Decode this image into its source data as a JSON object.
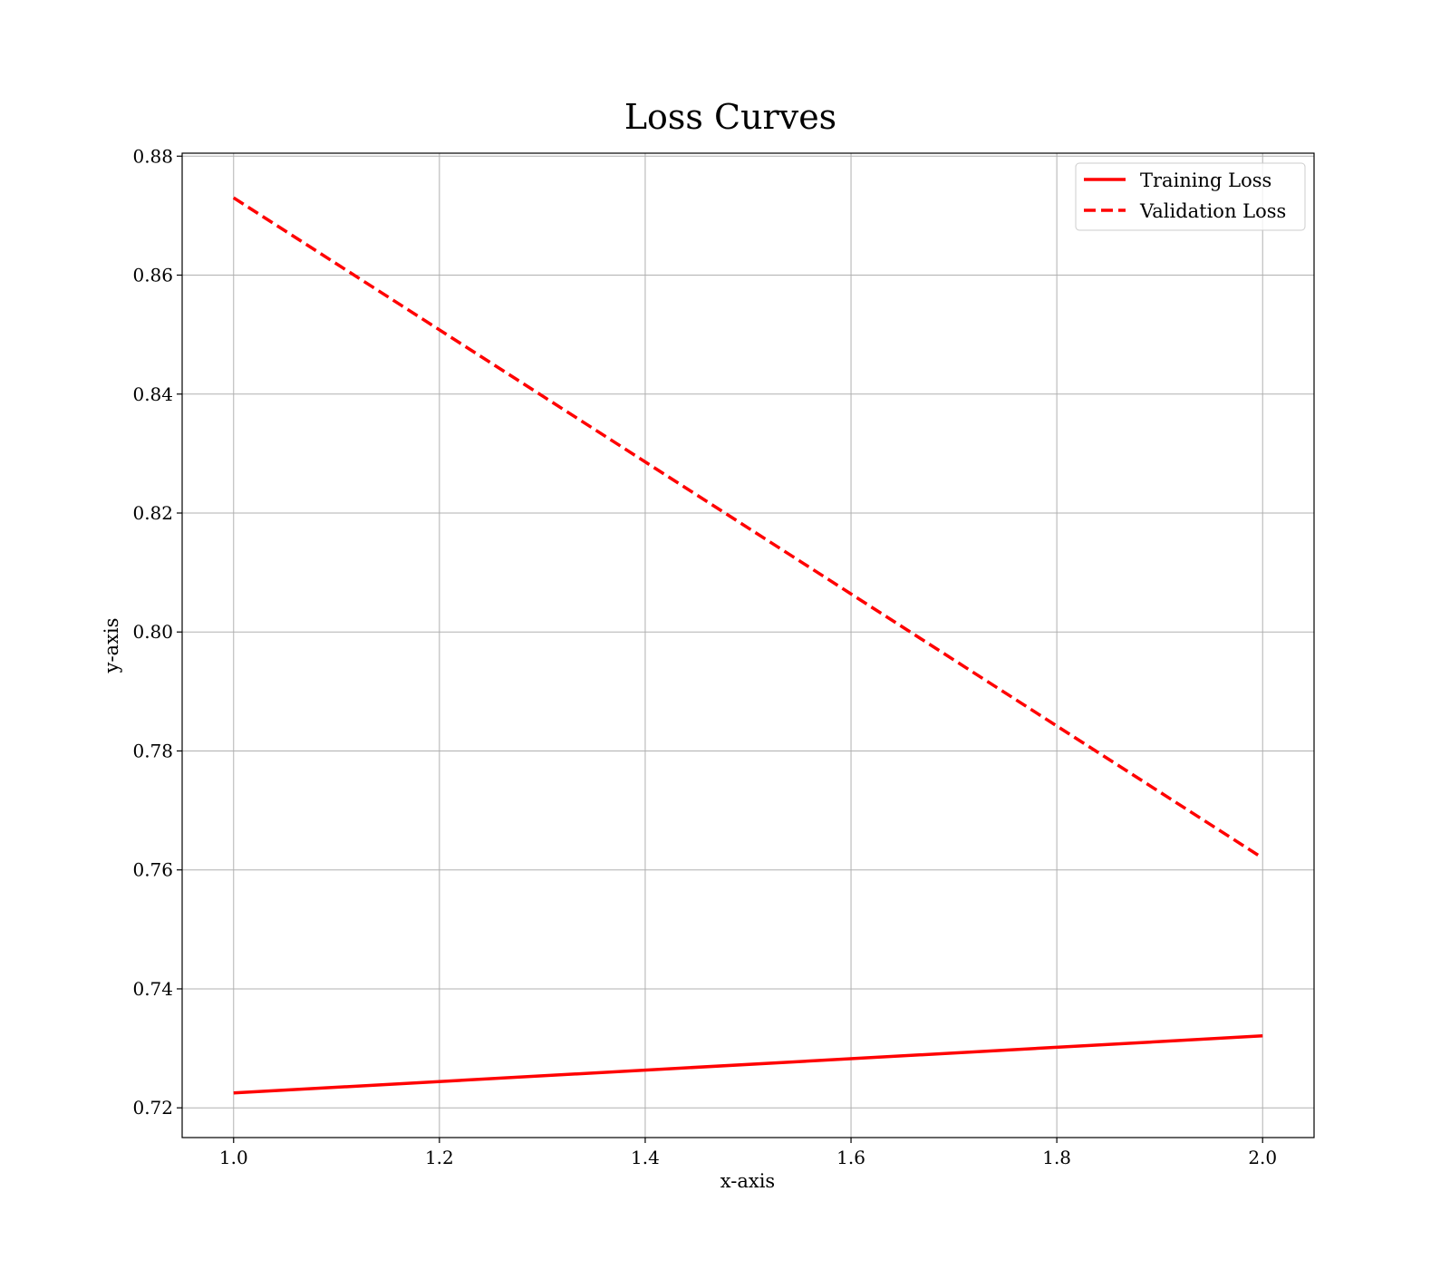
{
  "chart_data": {
    "type": "line",
    "title": "Loss Curves",
    "xlabel": "x-axis",
    "ylabel": "y-axis",
    "xlim": [
      0.95,
      2.05
    ],
    "ylim": [
      0.715,
      0.8805
    ],
    "xticks": [
      1.0,
      1.2,
      1.4,
      1.6,
      1.8,
      2.0
    ],
    "xtick_labels": [
      "1.0",
      "1.2",
      "1.4",
      "1.6",
      "1.8",
      "2.0"
    ],
    "yticks": [
      0.72,
      0.74,
      0.76,
      0.78,
      0.8,
      0.82,
      0.84,
      0.86,
      0.88
    ],
    "ytick_labels": [
      "0.72",
      "0.74",
      "0.76",
      "0.78",
      "0.80",
      "0.82",
      "0.84",
      "0.86",
      "0.88"
    ],
    "grid": true,
    "legend_position": "top-right",
    "series": [
      {
        "name": "Training Loss",
        "x": [
          1.0,
          2.0
        ],
        "y": [
          0.7225,
          0.7321
        ],
        "color": "#ff0000",
        "style": "solid"
      },
      {
        "name": "Validation Loss",
        "x": [
          1.0,
          2.0
        ],
        "y": [
          0.873,
          0.762
        ],
        "color": "#ff0000",
        "style": "dashed"
      }
    ]
  }
}
